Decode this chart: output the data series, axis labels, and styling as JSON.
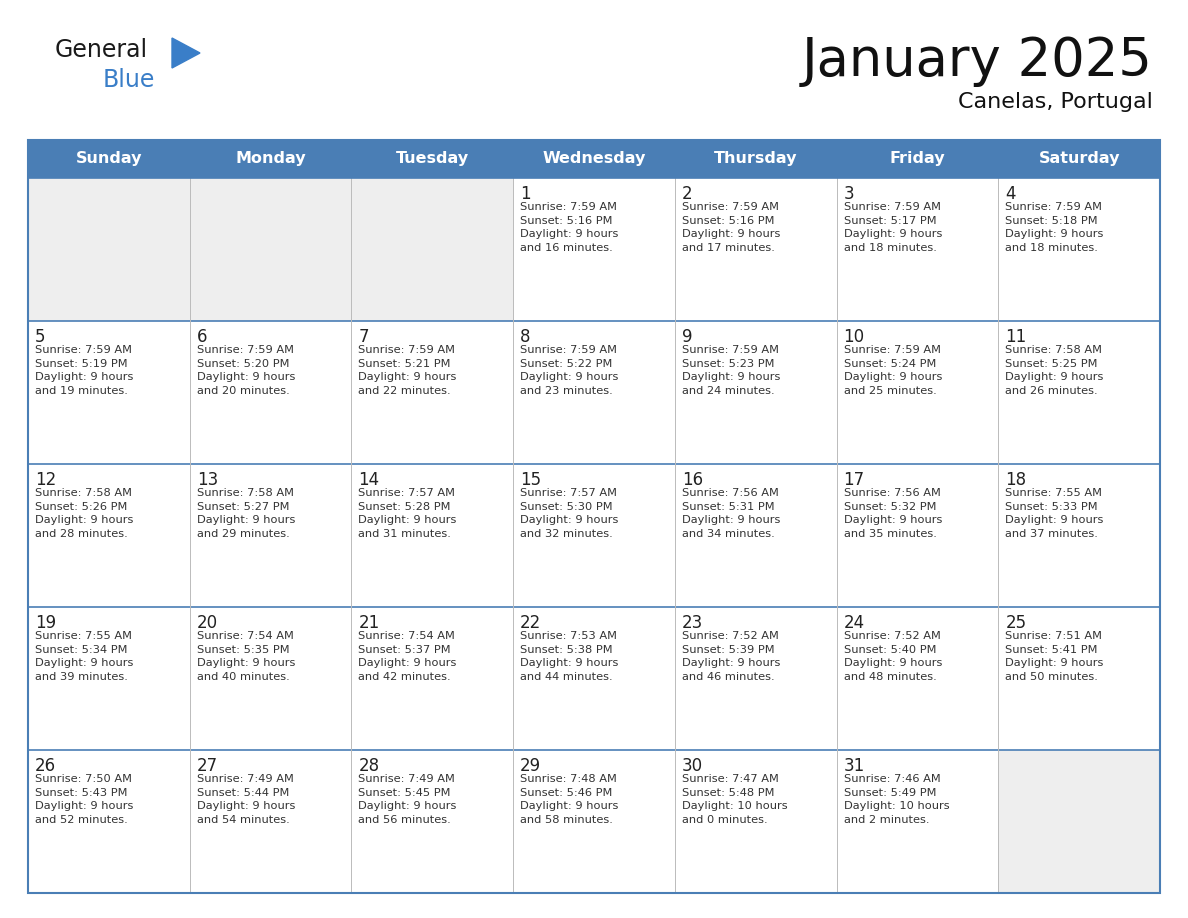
{
  "title": "January 2025",
  "subtitle": "Canelas, Portugal",
  "header_color": "#4a7eb5",
  "header_text_color": "#ffffff",
  "border_color": "#4a7eb5",
  "text_color": "#222222",
  "info_text_color": "#333333",
  "empty_cell_bg": "#eeeeee",
  "normal_cell_bg": "#ffffff",
  "logo_general_color": "#1a1a1a",
  "logo_blue_color": "#3a7ec8",
  "logo_triangle_color": "#3a7ec8",
  "day_headers": [
    "Sunday",
    "Monday",
    "Tuesday",
    "Wednesday",
    "Thursday",
    "Friday",
    "Saturday"
  ],
  "calendar_data": [
    [
      {
        "day": "",
        "info": ""
      },
      {
        "day": "",
        "info": ""
      },
      {
        "day": "",
        "info": ""
      },
      {
        "day": "1",
        "info": "Sunrise: 7:59 AM\nSunset: 5:16 PM\nDaylight: 9 hours\nand 16 minutes."
      },
      {
        "day": "2",
        "info": "Sunrise: 7:59 AM\nSunset: 5:16 PM\nDaylight: 9 hours\nand 17 minutes."
      },
      {
        "day": "3",
        "info": "Sunrise: 7:59 AM\nSunset: 5:17 PM\nDaylight: 9 hours\nand 18 minutes."
      },
      {
        "day": "4",
        "info": "Sunrise: 7:59 AM\nSunset: 5:18 PM\nDaylight: 9 hours\nand 18 minutes."
      }
    ],
    [
      {
        "day": "5",
        "info": "Sunrise: 7:59 AM\nSunset: 5:19 PM\nDaylight: 9 hours\nand 19 minutes."
      },
      {
        "day": "6",
        "info": "Sunrise: 7:59 AM\nSunset: 5:20 PM\nDaylight: 9 hours\nand 20 minutes."
      },
      {
        "day": "7",
        "info": "Sunrise: 7:59 AM\nSunset: 5:21 PM\nDaylight: 9 hours\nand 22 minutes."
      },
      {
        "day": "8",
        "info": "Sunrise: 7:59 AM\nSunset: 5:22 PM\nDaylight: 9 hours\nand 23 minutes."
      },
      {
        "day": "9",
        "info": "Sunrise: 7:59 AM\nSunset: 5:23 PM\nDaylight: 9 hours\nand 24 minutes."
      },
      {
        "day": "10",
        "info": "Sunrise: 7:59 AM\nSunset: 5:24 PM\nDaylight: 9 hours\nand 25 minutes."
      },
      {
        "day": "11",
        "info": "Sunrise: 7:58 AM\nSunset: 5:25 PM\nDaylight: 9 hours\nand 26 minutes."
      }
    ],
    [
      {
        "day": "12",
        "info": "Sunrise: 7:58 AM\nSunset: 5:26 PM\nDaylight: 9 hours\nand 28 minutes."
      },
      {
        "day": "13",
        "info": "Sunrise: 7:58 AM\nSunset: 5:27 PM\nDaylight: 9 hours\nand 29 minutes."
      },
      {
        "day": "14",
        "info": "Sunrise: 7:57 AM\nSunset: 5:28 PM\nDaylight: 9 hours\nand 31 minutes."
      },
      {
        "day": "15",
        "info": "Sunrise: 7:57 AM\nSunset: 5:30 PM\nDaylight: 9 hours\nand 32 minutes."
      },
      {
        "day": "16",
        "info": "Sunrise: 7:56 AM\nSunset: 5:31 PM\nDaylight: 9 hours\nand 34 minutes."
      },
      {
        "day": "17",
        "info": "Sunrise: 7:56 AM\nSunset: 5:32 PM\nDaylight: 9 hours\nand 35 minutes."
      },
      {
        "day": "18",
        "info": "Sunrise: 7:55 AM\nSunset: 5:33 PM\nDaylight: 9 hours\nand 37 minutes."
      }
    ],
    [
      {
        "day": "19",
        "info": "Sunrise: 7:55 AM\nSunset: 5:34 PM\nDaylight: 9 hours\nand 39 minutes."
      },
      {
        "day": "20",
        "info": "Sunrise: 7:54 AM\nSunset: 5:35 PM\nDaylight: 9 hours\nand 40 minutes."
      },
      {
        "day": "21",
        "info": "Sunrise: 7:54 AM\nSunset: 5:37 PM\nDaylight: 9 hours\nand 42 minutes."
      },
      {
        "day": "22",
        "info": "Sunrise: 7:53 AM\nSunset: 5:38 PM\nDaylight: 9 hours\nand 44 minutes."
      },
      {
        "day": "23",
        "info": "Sunrise: 7:52 AM\nSunset: 5:39 PM\nDaylight: 9 hours\nand 46 minutes."
      },
      {
        "day": "24",
        "info": "Sunrise: 7:52 AM\nSunset: 5:40 PM\nDaylight: 9 hours\nand 48 minutes."
      },
      {
        "day": "25",
        "info": "Sunrise: 7:51 AM\nSunset: 5:41 PM\nDaylight: 9 hours\nand 50 minutes."
      }
    ],
    [
      {
        "day": "26",
        "info": "Sunrise: 7:50 AM\nSunset: 5:43 PM\nDaylight: 9 hours\nand 52 minutes."
      },
      {
        "day": "27",
        "info": "Sunrise: 7:49 AM\nSunset: 5:44 PM\nDaylight: 9 hours\nand 54 minutes."
      },
      {
        "day": "28",
        "info": "Sunrise: 7:49 AM\nSunset: 5:45 PM\nDaylight: 9 hours\nand 56 minutes."
      },
      {
        "day": "29",
        "info": "Sunrise: 7:48 AM\nSunset: 5:46 PM\nDaylight: 9 hours\nand 58 minutes."
      },
      {
        "day": "30",
        "info": "Sunrise: 7:47 AM\nSunset: 5:48 PM\nDaylight: 10 hours\nand 0 minutes."
      },
      {
        "day": "31",
        "info": "Sunrise: 7:46 AM\nSunset: 5:49 PM\nDaylight: 10 hours\nand 2 minutes."
      },
      {
        "day": "",
        "info": ""
      }
    ]
  ]
}
